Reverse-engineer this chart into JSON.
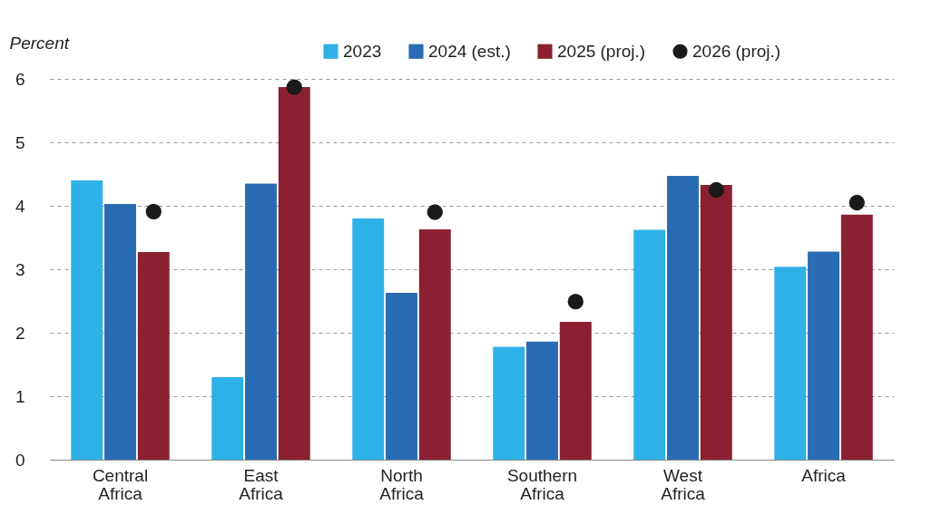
{
  "chart_data": {
    "type": "bar",
    "ylabel": "Percent",
    "categories": [
      "Central Africa",
      "East Africa",
      "North Africa",
      "Southern Africa",
      "West Africa",
      "Africa"
    ],
    "series": [
      {
        "name": "2023",
        "color": "#2eb1e6",
        "values": [
          4.4,
          1.3,
          3.8,
          1.78,
          3.62,
          3.04
        ]
      },
      {
        "name": "2024 (est.)",
        "color": "#2a6cb4",
        "values": [
          4.03,
          4.35,
          2.63,
          1.86,
          4.47,
          3.28
        ]
      },
      {
        "name": "2025 (proj.)",
        "color": "#8a2031",
        "values": [
          3.27,
          5.87,
          3.63,
          2.17,
          4.33,
          3.86
        ]
      },
      {
        "name": "2026 (proj.)",
        "type": "scatter",
        "marker": "circle",
        "color": "#1a1a1a",
        "values": [
          3.91,
          5.87,
          3.9,
          2.49,
          4.25,
          4.05
        ]
      }
    ],
    "ylim": [
      0,
      6
    ],
    "yticks": [
      0,
      1,
      2,
      3,
      4,
      5,
      6
    ],
    "grid": "y",
    "legend": "top right"
  }
}
